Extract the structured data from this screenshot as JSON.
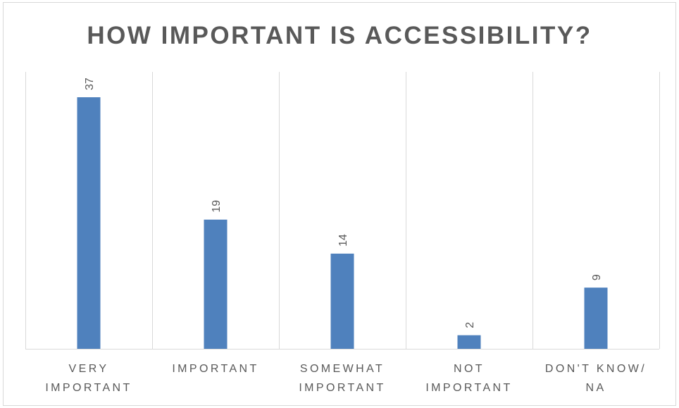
{
  "chart_data": {
    "type": "bar",
    "title": "HOW IMPORTANT IS ACCESSIBILITY?",
    "categories": [
      [
        "VERY",
        "IMPORTANT"
      ],
      [
        "IMPORTANT"
      ],
      [
        "SOMEWHAT",
        "IMPORTANT"
      ],
      [
        "NOT",
        "IMPORTANT"
      ],
      [
        "DON'T KNOW/",
        "NA"
      ]
    ],
    "values": [
      37,
      19,
      14,
      2,
      9
    ],
    "xlabel": "",
    "ylabel": "",
    "ylim": [
      0,
      37
    ],
    "data_labels": true,
    "data_label_rotation": "vertical",
    "vertical_gridlines_between_categories": true,
    "y_axis_shown": false,
    "legend": "none",
    "bar_color": "#4f81bd",
    "gridline_color": "#d9d9d9",
    "text_color": "#595959"
  }
}
